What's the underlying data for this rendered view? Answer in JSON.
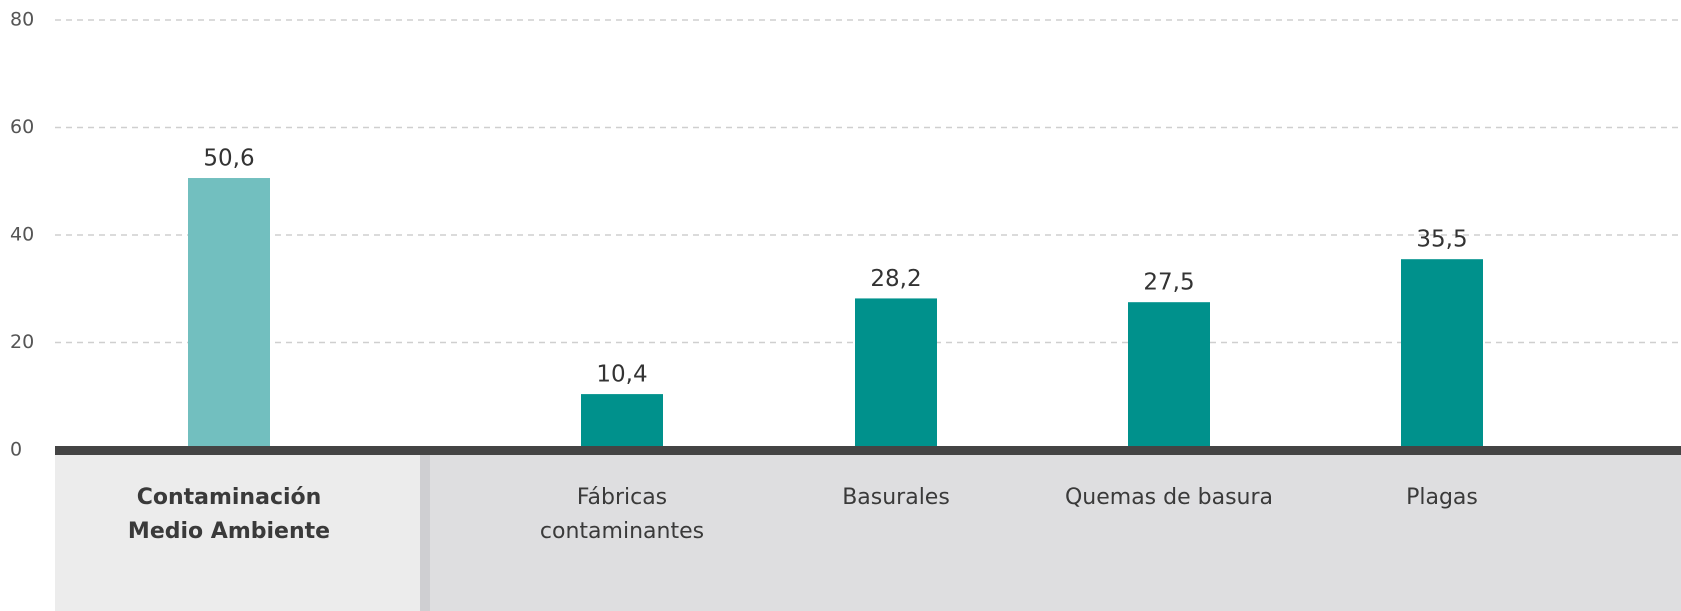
{
  "chart_data": {
    "type": "bar",
    "categories": [
      "Contaminación Medio Ambiente",
      "Fábricas contaminantes",
      "Basurales",
      "Quemas de basura",
      "Plagas"
    ],
    "values": [
      50.6,
      10.4,
      28.2,
      27.5,
      35.5
    ],
    "value_labels": [
      "50,6",
      "10,4",
      "28,2",
      "27,5",
      "35,5"
    ],
    "colors": [
      "#72bfbf",
      "#00918c",
      "#00918c",
      "#00918c",
      "#00918c"
    ],
    "ylim": [
      0,
      80
    ],
    "yticks": [
      0,
      20,
      40,
      60,
      80
    ],
    "grid": true
  }
}
